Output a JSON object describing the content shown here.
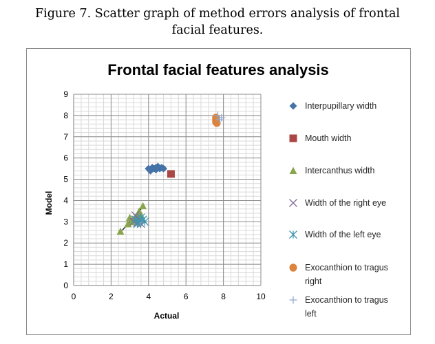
{
  "caption": {
    "line1": "Figure 7. Scatter graph of method errors analysis of frontal",
    "line2": "facial features."
  },
  "chart_data": {
    "type": "scatter",
    "title": "Frontal facial features analysis",
    "xlabel": "Actual",
    "ylabel": "Model",
    "xlim": [
      0,
      10
    ],
    "ylim": [
      0,
      9
    ],
    "x_ticks": [
      0,
      2,
      4,
      6,
      8,
      10
    ],
    "y_ticks": [
      0,
      1,
      2,
      3,
      4,
      5,
      6,
      7,
      8,
      9
    ],
    "grid": true,
    "minor_grid_x": 0.4,
    "minor_grid_y": 0.2,
    "legend_position": "right",
    "series": [
      {
        "name": "Interpupillary width",
        "marker": "diamond",
        "color": "#4572a7",
        "points": [
          [
            4.0,
            5.5
          ],
          [
            4.1,
            5.4
          ],
          [
            4.2,
            5.55
          ],
          [
            4.3,
            5.5
          ],
          [
            4.4,
            5.45
          ],
          [
            4.5,
            5.6
          ],
          [
            4.6,
            5.5
          ],
          [
            4.7,
            5.55
          ],
          [
            4.8,
            5.5
          ],
          [
            4.4,
            5.55
          ]
        ],
        "trendline": [
          [
            4.0,
            5.45
          ],
          [
            4.9,
            5.6
          ]
        ]
      },
      {
        "name": "Mouth width",
        "marker": "square",
        "color": "#aa4643",
        "points": [
          [
            5.2,
            5.25
          ]
        ]
      },
      {
        "name": "Intercanthus width",
        "marker": "triangle",
        "color": "#89a54e",
        "points": [
          [
            2.5,
            2.55
          ],
          [
            2.9,
            2.9
          ],
          [
            3.1,
            3.0
          ],
          [
            3.2,
            3.1
          ],
          [
            3.3,
            3.2
          ],
          [
            3.4,
            3.3
          ],
          [
            3.5,
            3.5
          ],
          [
            3.7,
            3.75
          ],
          [
            3.0,
            3.2
          ],
          [
            3.6,
            3.3
          ]
        ],
        "trendline": [
          [
            2.6,
            2.6
          ],
          [
            3.7,
            3.7
          ]
        ]
      },
      {
        "name": "Width of the right eye",
        "marker": "x",
        "color": "#80699b",
        "points": [
          [
            3.2,
            3.0
          ],
          [
            3.3,
            3.3
          ],
          [
            3.4,
            3.2
          ],
          [
            3.5,
            3.1
          ],
          [
            3.6,
            2.9
          ],
          [
            3.4,
            2.95
          ],
          [
            3.3,
            3.1
          ]
        ]
      },
      {
        "name": "Width of the left eye",
        "marker": "asterisk",
        "color": "#3d96ae",
        "points": [
          [
            3.3,
            3.1
          ],
          [
            3.5,
            3.0
          ],
          [
            3.6,
            3.2
          ],
          [
            3.8,
            3.0
          ],
          [
            3.4,
            2.9
          ],
          [
            3.7,
            3.1
          ]
        ]
      },
      {
        "name": "Exocanthion to tragus right",
        "name_lines": [
          "Exocanthion to tragus",
          "right"
        ],
        "marker": "circle",
        "color": "#db843d",
        "points": [
          [
            7.6,
            7.9
          ],
          [
            7.6,
            7.8
          ],
          [
            7.6,
            7.7
          ],
          [
            7.65,
            7.65
          ]
        ]
      },
      {
        "name": "Exocanthion to tragus left",
        "name_lines": [
          "Exocanthion to tragus",
          "left"
        ],
        "marker": "plus",
        "color": "#92a8cd",
        "points": [
          [
            7.9,
            7.9
          ],
          [
            7.8,
            7.8
          ],
          [
            7.7,
            8.0
          ]
        ]
      }
    ]
  }
}
